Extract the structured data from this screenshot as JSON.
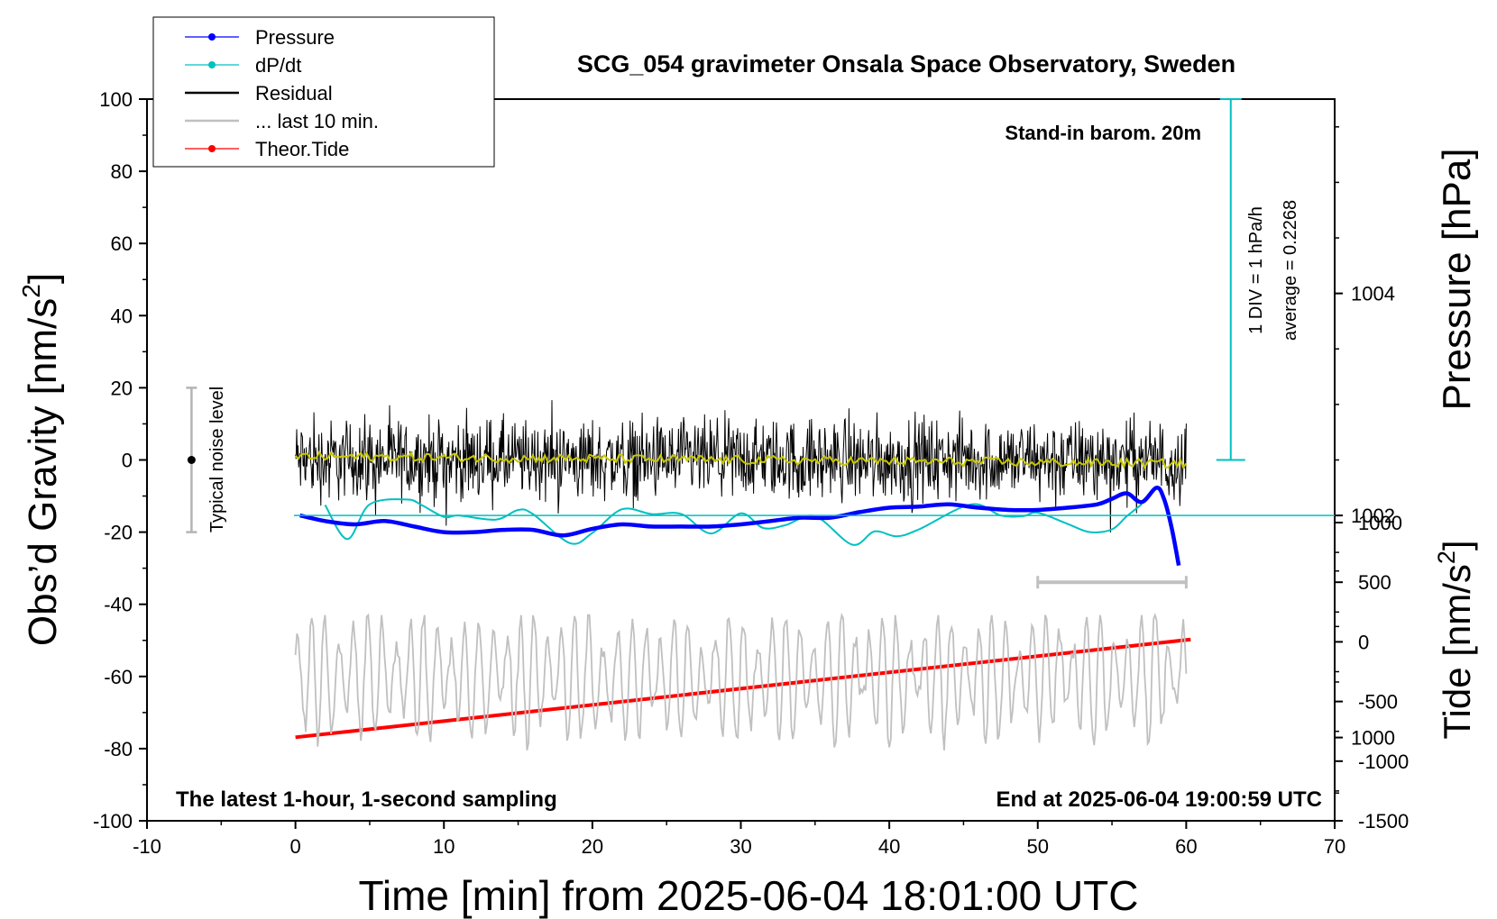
{
  "chart_data": {
    "type": "line",
    "title": "SCG_054 gravimeter Onsala Space Observatory, Sweden",
    "xlabel": "Time [min] from 2025-06-04 18:01:00 UTC",
    "ylabel": "Obs’d Gravity [nm/s",
    "ylabel_sup": "2",
    "ylabel_end": "]",
    "pressure_label": "Pressure [hPa]",
    "tide_label": "Tide [nm/s",
    "tide_label_sup": "2",
    "tide_label_end": "]",
    "xlim": [
      -10,
      70
    ],
    "ylim": [
      -100,
      100
    ],
    "x_ticks": [
      "-10",
      "0",
      "10",
      "20",
      "30",
      "40",
      "50",
      "60",
      "70"
    ],
    "y_ticks": [
      "-100",
      "-80",
      "-60",
      "-40",
      "-20",
      "0",
      "20",
      "40",
      "60",
      "80",
      "100"
    ],
    "pressure_ticks": [
      "1000",
      "1002",
      "1004"
    ],
    "tide_ticks": [
      "-1500",
      "-1000",
      "-500",
      "0",
      "500",
      "1000"
    ],
    "annotations": {
      "barometer": "Stand-in barom. 20m",
      "div_note": "1 DIV = 1 hPa/h",
      "average_note": "average = 0.2268",
      "noise_label": "Typical noise level",
      "sampling_note": "The latest 1-hour, 1-second sampling",
      "end_note": "End at 2025-06-04 19:00:59 UTC"
    },
    "noise_level": {
      "x": -7,
      "center": 0,
      "range": [
        -20,
        20
      ]
    },
    "last_10_min_bracket": {
      "from": 50,
      "to": 60,
      "tide": 500
    },
    "legend": [
      {
        "name": "Pressure",
        "color": "#0000ff",
        "marker": true
      },
      {
        "name": "dP/dt",
        "color": "#00c0c0",
        "marker": true
      },
      {
        "name": "Residual",
        "color": "#000000",
        "marker": false
      },
      {
        "name": "... last 10 min.",
        "color": "#c0c0c0",
        "marker": false
      },
      {
        "name": "Theor.Tide",
        "color": "#ff0000",
        "marker": true
      }
    ],
    "series": {
      "pressure_hPa": {
        "x": [
          0.3,
          2,
          4,
          6,
          8,
          10,
          12,
          14,
          16,
          18,
          20,
          22,
          24,
          26,
          28,
          30,
          32,
          34,
          36,
          38,
          40,
          42,
          44,
          46,
          48,
          50,
          52,
          54,
          55,
          56,
          57,
          58,
          58.5,
          59,
          59.5
        ],
        "values": [
          1002.0,
          1001.95,
          1001.92,
          1001.95,
          1001.9,
          1001.85,
          1001.85,
          1001.87,
          1001.87,
          1001.82,
          1001.88,
          1001.92,
          1001.9,
          1001.9,
          1001.9,
          1001.92,
          1001.95,
          1001.98,
          1001.98,
          1002.03,
          1002.07,
          1002.08,
          1002.1,
          1002.07,
          1002.05,
          1002.05,
          1002.07,
          1002.1,
          1002.15,
          1002.2,
          1002.12,
          1002.25,
          1002.15,
          1001.9,
          1001.55
        ]
      },
      "dPdt_hPa_per_h": {
        "x": [
          2,
          3.5,
          5,
          7.5,
          8.5,
          10,
          11,
          13.5,
          15,
          16,
          18.5,
          20,
          22,
          24,
          26,
          28,
          30,
          31.5,
          33,
          35,
          37.5,
          39,
          40.5,
          42,
          45.5,
          47.5,
          49,
          50,
          52,
          53.5,
          55,
          56,
          57
        ],
        "values": [
          -1.5,
          3.4,
          -1.6,
          -2.3,
          -1.5,
          0.2,
          0.0,
          0.6,
          -0.8,
          -0.2,
          4.0,
          2.5,
          -0.9,
          -0.2,
          -0.2,
          2.6,
          -0.3,
          1.8,
          1.4,
          0.1,
          4.2,
          2.3,
          3.0,
          2.0,
          -1.6,
          0.0,
          0.1,
          -0.4,
          1.2,
          2.4,
          2.0,
          0.1,
          -1.6
        ]
      },
      "residual_nm_s2": {
        "x_range": [
          0,
          60
        ],
        "amplitude": 22,
        "description_values": [
          -20,
          20
        ]
      },
      "residual_smoothed_nm_s2": {
        "x_range": [
          0,
          60
        ],
        "start": 1,
        "end": -1
      },
      "last_10_min_nm_s2": {
        "x_range": [
          0,
          60
        ],
        "center": -60,
        "min": -83,
        "max": -43
      },
      "theoretical_tide_nm_s2": {
        "x": [
          0,
          60.3
        ],
        "values": [
          -800,
          20
        ]
      }
    },
    "tide_axis_range": [
      -1500,
      1000
    ],
    "pressure_axis_range": [
      999.25,
      1005.75
    ]
  }
}
